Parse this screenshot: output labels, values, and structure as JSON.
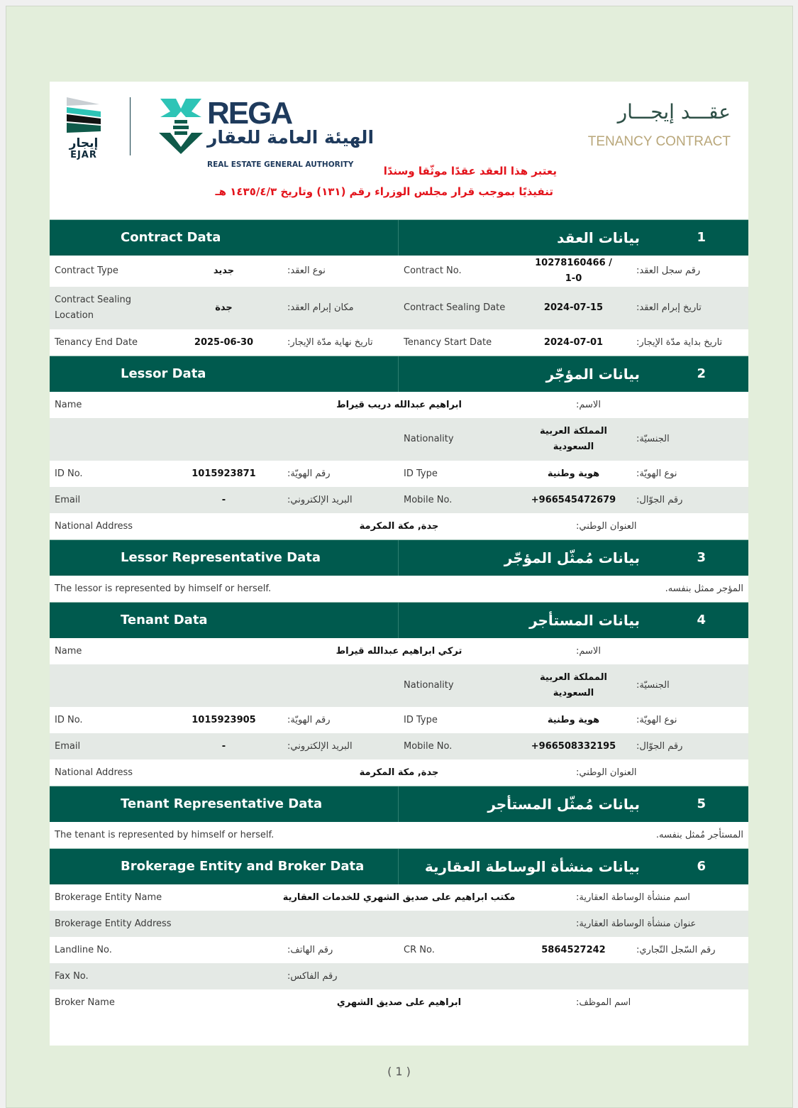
{
  "header": {
    "ejar_ar": "إيجار",
    "ejar_en": "EJAR",
    "rega_word": "REGA",
    "rega_ar": "الهيئة العامة للعقار",
    "rega_en": "REAL ESTATE GENERAL AUTHORITY",
    "title_ar": "عقـــد إيجـــار",
    "title_en": "TENANCY CONTRACT",
    "notice_1": "يعتبر هذا العقد عقدًا موثّقا وسندًا",
    "notice_2": "تنفيذيًا بموجب قرار مجلس الوزراء رقم (١٣١) وتاريخ ١٤٣٥/٤/٣ هـ"
  },
  "colors": {
    "section": "#005a4e",
    "stripe": "#e4e9e5",
    "notice": "#e3141c",
    "background": "#e3eedb"
  },
  "sections": [
    {
      "num": "1",
      "en": "Contract Data",
      "ar": "بيانات العقد",
      "rows": [
        {
          "type": "six",
          "cells": [
            "Contract Type",
            "جديد",
            "نوع العقد:",
            "Contract No.",
            "10278160466 / 1-0",
            "رقم سجل العقد:"
          ]
        },
        {
          "type": "six",
          "tall": true,
          "cells": [
            "Contract Sealing Location",
            "جدة",
            "مكان إبرام العقد:",
            "Contract Sealing Date",
            "2024-07-15",
            "تاريخ إبرام العقد:"
          ]
        },
        {
          "type": "six",
          "cells": [
            "Tenancy End Date",
            "2025-06-30",
            "تاريخ نهاية مدّة الإيجار:",
            "Tenancy Start Date",
            "2024-07-01",
            "تاريخ بداية مدّة الإيجار:"
          ]
        }
      ]
    },
    {
      "num": "2",
      "en": "Lessor Data",
      "ar": "بيانات المؤجّر",
      "rows": [
        {
          "type": "wide",
          "cells": [
            "Name",
            "ابراهيم عبدالله دريب قيراط",
            "الاسم:"
          ]
        },
        {
          "type": "six",
          "tall": true,
          "cells": [
            "",
            "",
            "",
            "Nationality",
            "المملكة العربية السعودية",
            "الجنسيّة:"
          ]
        },
        {
          "type": "six",
          "cells": [
            "ID No.",
            "1015923871",
            "رقم الهويّة:",
            "ID Type",
            "هوية وطنية",
            "نوع الهويّة:"
          ]
        },
        {
          "type": "six",
          "cells": [
            "Email",
            "-",
            "البريد الإلكتروني:",
            "Mobile No.",
            "+966545472679",
            "رقم الجوّال:"
          ]
        },
        {
          "type": "wide",
          "cells": [
            "National Address",
            "جدة, مكة المكرمة",
            "العنوان الوطني:"
          ]
        }
      ]
    },
    {
      "num": "3",
      "en": "Lessor Representative Data",
      "ar": "بيانات مُمثّل المؤجّر",
      "rows": [
        {
          "type": "note",
          "cells": [
            "The lessor is represented by himself or herself.",
            "المؤجر ممثل بنفسه."
          ]
        }
      ]
    },
    {
      "num": "4",
      "en": "Tenant Data",
      "ar": "بيانات المستأجر",
      "rows": [
        {
          "type": "wide",
          "cells": [
            "Name",
            "تركي ابراهيم عبدالله قيراط",
            "الاسم:"
          ]
        },
        {
          "type": "six",
          "tall": true,
          "cells": [
            "",
            "",
            "",
            "Nationality",
            "المملكة العربية السعودية",
            "الجنسيّة:"
          ]
        },
        {
          "type": "six",
          "cells": [
            "ID No.",
            "1015923905",
            "رقم الهويّة:",
            "ID Type",
            "هوية وطنية",
            "نوع الهويّة:"
          ]
        },
        {
          "type": "six",
          "cells": [
            "Email",
            "-",
            "البريد الإلكتروني:",
            "Mobile No.",
            "+966508332195",
            "رقم الجوّال:"
          ]
        },
        {
          "type": "wide",
          "cells": [
            "National Address",
            "جدة, مكة المكرمة",
            "العنوان الوطني:"
          ]
        }
      ]
    },
    {
      "num": "5",
      "en": "Tenant Representative Data",
      "ar": "بيانات مُمثّل المستأجر",
      "rows": [
        {
          "type": "note",
          "cells": [
            "The tenant is represented by himself or herself.",
            "المستأجر مُمثل بنفسه."
          ]
        }
      ]
    },
    {
      "num": "6",
      "en": "Brokerage Entity and Broker Data",
      "ar": "بيانات منشأة الوساطة العقارية",
      "rows": [
        {
          "type": "wide",
          "cells": [
            "Brokerage Entity Name",
            "مكتب ابراهيم على صديق الشهري للخدمات العقارية",
            "اسم منشأة الوساطة العقارية:"
          ]
        },
        {
          "type": "wide",
          "cells": [
            "Brokerage Entity Address",
            "",
            "عنوان منشأة الوساطة العقارية:"
          ]
        },
        {
          "type": "six",
          "cells": [
            "Landline No.",
            "",
            "رقم الهاتف:",
            "CR No.",
            "5864527242",
            "رقم السّجل التّجاري:"
          ]
        },
        {
          "type": "six",
          "cells": [
            "Fax No.",
            "",
            "رقم الفاكس:",
            "",
            "",
            ""
          ]
        },
        {
          "type": "wide",
          "cells": [
            "Broker Name",
            "ابراهيم على صديق الشهري",
            "اسم الموظف:"
          ]
        }
      ]
    }
  ],
  "page_number": "( 1 )"
}
